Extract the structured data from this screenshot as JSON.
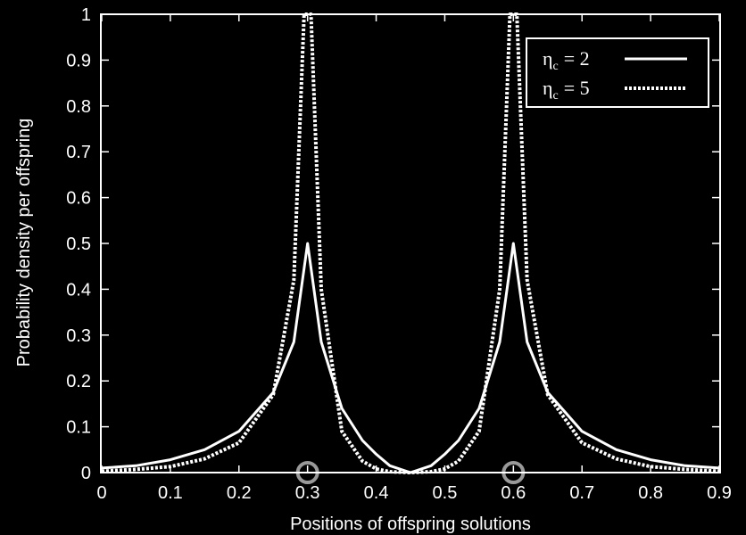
{
  "chart_data": {
    "type": "line",
    "title": "",
    "xlabel": "Positions of offspring solutions",
    "ylabel": "Probability density per offspring",
    "xlim": [
      0,
      0.9
    ],
    "ylim": [
      0,
      1
    ],
    "x_ticks": [
      "0",
      "0.1",
      "0.2",
      "0.3",
      "0.4",
      "0.5",
      "0.6",
      "0.7",
      "0.8",
      "0.9"
    ],
    "y_ticks": [
      "0",
      "0.1",
      "0.2",
      "0.3",
      "0.4",
      "0.5",
      "0.6",
      "0.7",
      "0.8",
      "0.9",
      "1"
    ],
    "parents": [
      0.3,
      0.6
    ],
    "legend_position": "top-right",
    "series": [
      {
        "name": "ηc = 2",
        "legend_symbol": "η",
        "legend_subscript": "c",
        "legend_value": "= 2",
        "style": "solid",
        "color": "#ffffff",
        "points": [
          [
            0.0,
            0.01
          ],
          [
            0.05,
            0.015
          ],
          [
            0.1,
            0.028
          ],
          [
            0.15,
            0.05
          ],
          [
            0.2,
            0.09
          ],
          [
            0.25,
            0.175
          ],
          [
            0.28,
            0.285
          ],
          [
            0.3,
            0.5
          ],
          [
            0.32,
            0.285
          ],
          [
            0.35,
            0.14
          ],
          [
            0.38,
            0.07
          ],
          [
            0.4,
            0.04
          ],
          [
            0.42,
            0.015
          ],
          [
            0.45,
            0.0
          ],
          [
            0.48,
            0.015
          ],
          [
            0.5,
            0.04
          ],
          [
            0.52,
            0.07
          ],
          [
            0.55,
            0.14
          ],
          [
            0.58,
            0.285
          ],
          [
            0.6,
            0.5
          ],
          [
            0.62,
            0.285
          ],
          [
            0.65,
            0.175
          ],
          [
            0.7,
            0.09
          ],
          [
            0.75,
            0.05
          ],
          [
            0.8,
            0.028
          ],
          [
            0.85,
            0.015
          ],
          [
            0.9,
            0.01
          ]
        ]
      },
      {
        "name": "ηc = 5",
        "legend_symbol": "η",
        "legend_subscript": "c",
        "legend_value": "= 5",
        "style": "dotted",
        "color": "#ffffff",
        "points": [
          [
            0.0,
            0.003
          ],
          [
            0.05,
            0.007
          ],
          [
            0.1,
            0.013
          ],
          [
            0.15,
            0.03
          ],
          [
            0.2,
            0.065
          ],
          [
            0.25,
            0.17
          ],
          [
            0.28,
            0.42
          ],
          [
            0.295,
            1.0
          ],
          [
            0.305,
            1.0
          ],
          [
            0.32,
            0.4
          ],
          [
            0.35,
            0.09
          ],
          [
            0.38,
            0.025
          ],
          [
            0.4,
            0.008
          ],
          [
            0.42,
            0.002
          ],
          [
            0.45,
            0.0
          ],
          [
            0.48,
            0.002
          ],
          [
            0.5,
            0.008
          ],
          [
            0.52,
            0.025
          ],
          [
            0.55,
            0.09
          ],
          [
            0.58,
            0.4
          ],
          [
            0.595,
            1.0
          ],
          [
            0.605,
            1.0
          ],
          [
            0.62,
            0.42
          ],
          [
            0.65,
            0.17
          ],
          [
            0.7,
            0.065
          ],
          [
            0.75,
            0.03
          ],
          [
            0.8,
            0.013
          ],
          [
            0.85,
            0.007
          ],
          [
            0.9,
            0.003
          ]
        ]
      }
    ]
  }
}
